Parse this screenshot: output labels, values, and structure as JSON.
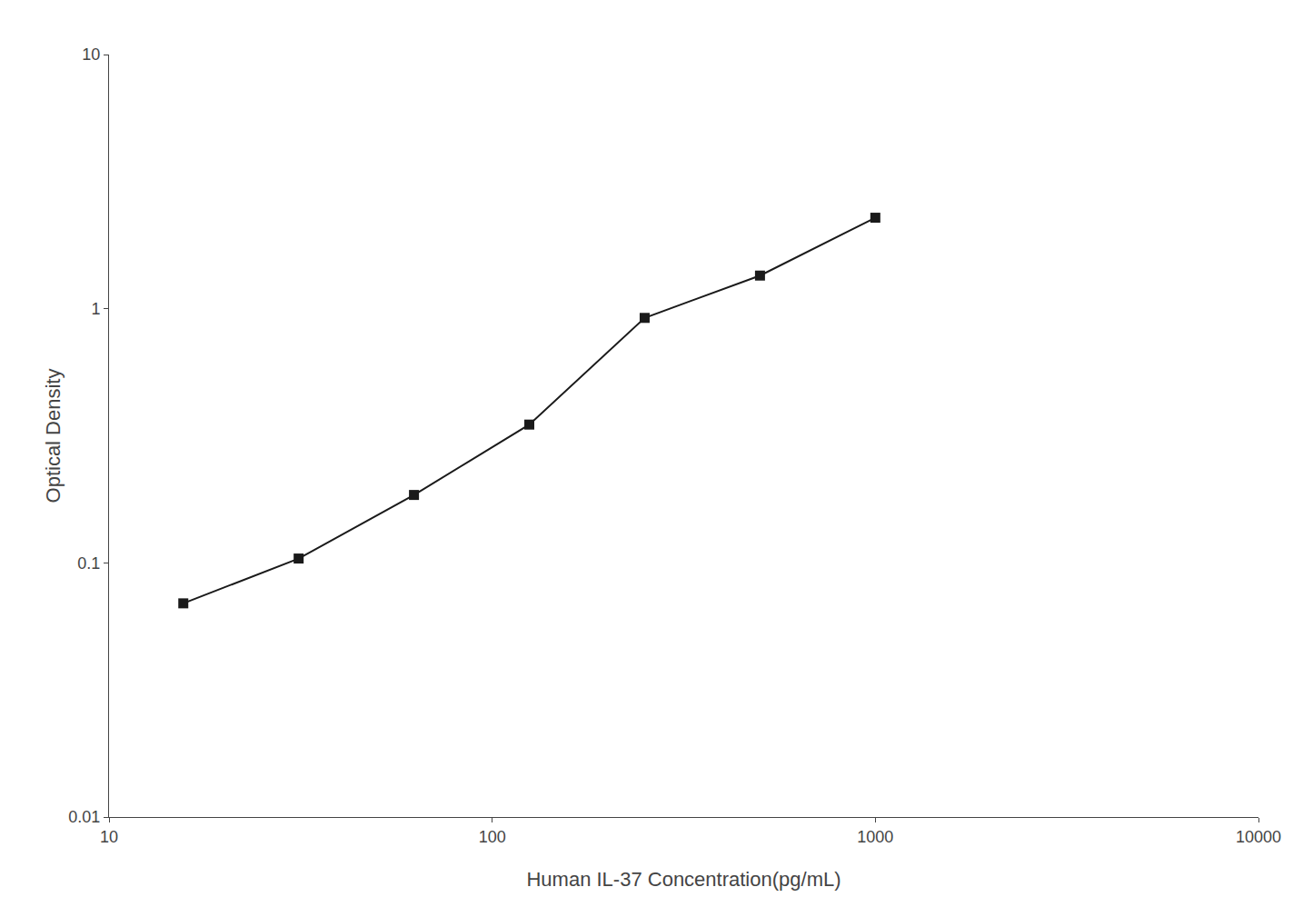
{
  "chart_data": {
    "type": "line",
    "x": [
      15.625,
      31.25,
      62.5,
      125,
      250,
      500,
      1000
    ],
    "values": [
      0.0693,
      0.104,
      0.185,
      0.35,
      0.92,
      1.35,
      2.28
    ],
    "xlabel": "Human IL-37 Concentration(pg/mL)",
    "ylabel": "Optical Density",
    "xlim": [
      10,
      10000
    ],
    "ylim": [
      0.01,
      10
    ],
    "xticks": [
      10,
      100,
      1000,
      10000
    ],
    "yticks": [
      0.01,
      0.1,
      1,
      10
    ],
    "log": true,
    "grid": false,
    "color": "#1a1a1a",
    "marker": "square",
    "line_style": "solid"
  }
}
